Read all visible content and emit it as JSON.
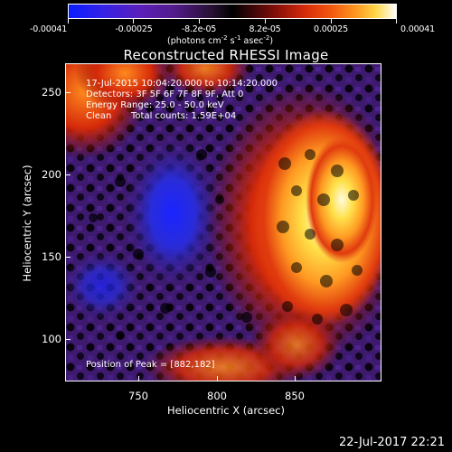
{
  "colorbar": {
    "tick_labels": [
      "-0.00041",
      "-0.00025",
      "-8.2e-05",
      "8.2e-05",
      "0.00025",
      "0.00041"
    ],
    "unit_main": "(photons cm",
    "unit_exp1": "-2",
    "unit_s": " s",
    "unit_exp2": "-1",
    "unit_asec": " asec",
    "unit_exp3": "-2",
    "unit_close": ")"
  },
  "title": "Reconstructed RHESSI Image",
  "info": {
    "time": "17-Jul-2015 10:04:20.000 to 10:14:20.000",
    "detectors": "Detectors: 3F 5F 6F 7F 8F 9F, Att 0",
    "energy": "Energy Range: 25.0 - 50.0 keV",
    "method": "Clean",
    "counts": "Total counts: 1.59E+04",
    "peak": "Position of Peak = [882,182]"
  },
  "axes": {
    "xlabel": "Heliocentric X (arcsec)",
    "ylabel": "Heliocentric Y (arcsec)",
    "xticks": [
      "750",
      "800",
      "850"
    ],
    "yticks": [
      "250",
      "200",
      "150",
      "100"
    ]
  },
  "footer": {
    "date": "22-Jul-2017 22:21"
  },
  "colors": {
    "bright": "#ffe14a",
    "mid": "#e03a0e",
    "dark_purple": "#3d1a6e",
    "blue": "#2a2cd8"
  }
}
